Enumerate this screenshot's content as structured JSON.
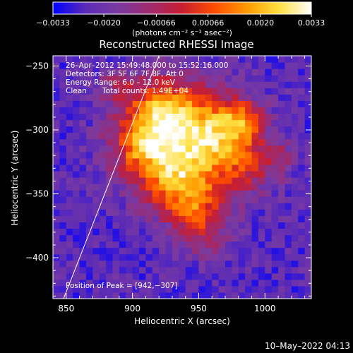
{
  "chart_data": {
    "type": "heatmap",
    "title": "Reconstructed RHESSI Image",
    "xlabel": "Heliocentric X (arcsec)",
    "ylabel": "Heliocentric Y (arcsec)",
    "xlim": [
      840,
      1035
    ],
    "ylim": [
      -432,
      -242
    ],
    "x_ticks": [
      850,
      900,
      950,
      1000
    ],
    "y_ticks": [
      -250,
      -300,
      -350,
      -400
    ],
    "x_tick_labels": [
      "850",
      "900",
      "950",
      "1000"
    ],
    "y_tick_labels": [
      "−250",
      "−300",
      "−350",
      "−400"
    ],
    "colorbar": {
      "ticks": [
        -0.0033,
        -0.002,
        -0.00066,
        0.00066,
        0.002,
        0.0033
      ],
      "tick_labels": [
        "−0.0033",
        "−0.0020",
        "−0.00066",
        "0.00066",
        "0.0020",
        "0.0033"
      ],
      "range": [
        -0.0033,
        0.0033
      ],
      "unit_label": "(photons cm⁻² s⁻¹ asec⁻²)",
      "colors": [
        "#0000ff",
        "#5a2ab8",
        "#7a3aa0",
        "#9e2a6e",
        "#c81e30",
        "#ff4c00",
        "#ff9a00",
        "#ffe040",
        "#ffffff"
      ]
    },
    "annotations": {
      "time_range": "26–Apr–2012 15:49:48.000 to 15:52:16.000",
      "detectors": "Detectors: 3F 5F 6F 7F 8F, Att 0",
      "energy_range": "Energy Range: 6.0 – 12.0 keV",
      "algorithm": "Clean",
      "total_counts": "Total counts: 1.49E+04",
      "peak": "Position of Peak = [942,−307]"
    },
    "peak_position": [
      942,
      -307
    ],
    "limb_line": [
      [
        848,
        -432
      ],
      [
        920,
        -242
      ]
    ],
    "emission_blobs": [
      {
        "x": 942,
        "y": -307,
        "sigma": 28,
        "amplitude": 1.0
      },
      {
        "x": 920,
        "y": -285,
        "sigma": 18,
        "amplitude": 0.55
      },
      {
        "x": 975,
        "y": -300,
        "sigma": 14,
        "amplitude": 0.45
      },
      {
        "x": 985,
        "y": -290,
        "sigma": 10,
        "amplitude": 0.35
      },
      {
        "x": 935,
        "y": -345,
        "sigma": 18,
        "amplitude": 0.55
      },
      {
        "x": 950,
        "y": -365,
        "sigma": 14,
        "amplitude": 0.35
      },
      {
        "x": 985,
        "y": -330,
        "sigma": 16,
        "amplitude": 0.35
      },
      {
        "x": 905,
        "y": -315,
        "sigma": 16,
        "amplitude": 0.45
      },
      {
        "x": 890,
        "y": -265,
        "sigma": 10,
        "amplitude": 0.3
      },
      {
        "x": 955,
        "y": -385,
        "sigma": 12,
        "amplitude": 0.25
      },
      {
        "x": 1010,
        "y": -320,
        "sigma": 10,
        "amplitude": 0.25
      }
    ],
    "background_level": -0.25,
    "grid": false
  },
  "footer": {
    "date_stamp": "10–May–2022 04:13"
  }
}
